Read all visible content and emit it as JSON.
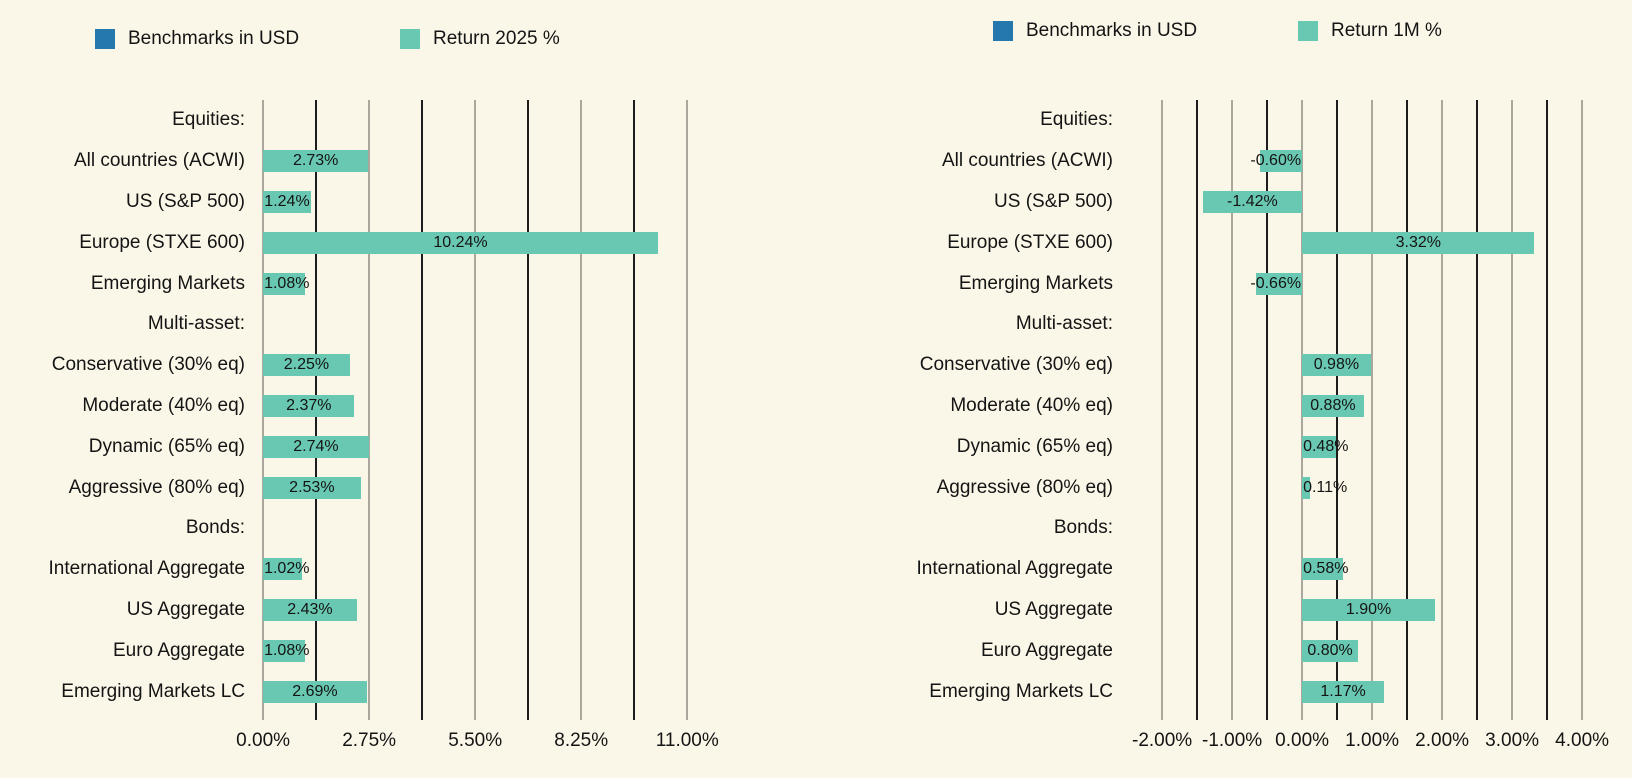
{
  "page": {
    "background": "#FBF7E8",
    "text_color": "#141414",
    "grid_labeled_color": "#ABA79D",
    "grid_midpoint_color": "#1C1C1C"
  },
  "chart_data": [
    {
      "type": "bar",
      "orientation": "horizontal",
      "grid": true,
      "legend_position": "top",
      "bar_color": "#69C8B2",
      "legend_items": [
        {
          "label": "Benchmarks in USD",
          "color": "#2478AD"
        },
        {
          "label": "Return 2025 %",
          "color": "#69C8B2"
        }
      ],
      "categories": [
        "Equities:",
        "All countries (ACWI)",
        "US (S&P 500)",
        "Europe (STXE 600)",
        "Emerging Markets",
        "Multi-asset:",
        "Conservative (30% eq)",
        "Moderate (40% eq)",
        "Dynamic (65% eq)",
        "Aggressive (80% eq)",
        "Bonds:",
        "International Aggregate",
        "US Aggregate",
        "Euro Aggregate",
        "Emerging Markets LC"
      ],
      "values": [
        null,
        2.73,
        1.24,
        10.24,
        1.08,
        null,
        2.25,
        2.37,
        2.74,
        2.53,
        null,
        1.02,
        2.43,
        1.08,
        2.69
      ],
      "value_labels": [
        "",
        "2.73%",
        "1.24%",
        "10.24%",
        "1.08%",
        "",
        "2.25%",
        "2.37%",
        "2.74%",
        "2.53%",
        "",
        "1.02%",
        "2.43%",
        "1.08%",
        "2.69%"
      ],
      "x_ticks": [
        {
          "value": 0,
          "label": "0.00%"
        },
        {
          "value": 2.75,
          "label": "2.75%"
        },
        {
          "value": 5.5,
          "label": "5.50%"
        },
        {
          "value": 8.25,
          "label": "8.25%"
        },
        {
          "value": 11,
          "label": "11.00%"
        }
      ],
      "minor_gridlines": [
        1.375,
        4.125,
        6.875,
        9.625
      ],
      "xlim": [
        -0.21,
        11.72
      ]
    },
    {
      "type": "bar",
      "orientation": "horizontal",
      "grid": true,
      "legend_position": "top",
      "bar_color": "#69C8B2",
      "legend_items": [
        {
          "label": "Benchmarks in USD",
          "color": "#2478AD"
        },
        {
          "label": "Return 1M %",
          "color": "#69C8B2"
        }
      ],
      "categories": [
        "Equities:",
        "All countries (ACWI)",
        "US (S&P 500)",
        "Europe (STXE 600)",
        "Emerging Markets",
        "Multi-asset:",
        "Conservative (30% eq)",
        "Moderate (40% eq)",
        "Dynamic (65% eq)",
        "Aggressive (80% eq)",
        "Bonds:",
        "International Aggregate",
        "US Aggregate",
        "Euro Aggregate",
        "Emerging Markets LC"
      ],
      "values": [
        null,
        -0.6,
        -1.42,
        3.32,
        -0.66,
        null,
        0.98,
        0.88,
        0.48,
        0.11,
        null,
        0.58,
        1.9,
        0.8,
        1.17
      ],
      "value_labels": [
        "",
        "-0.60%",
        "-1.42%",
        "3.32%",
        "-0.66%",
        "",
        "0.98%",
        "0.88%",
        "0.48%",
        "0.11%",
        "",
        "0.58%",
        "1.90%",
        "0.80%",
        "1.17%"
      ],
      "x_ticks": [
        {
          "value": -2,
          "label": "-2.00%"
        },
        {
          "value": -1,
          "label": "-1.00%"
        },
        {
          "value": 0,
          "label": "0.00%"
        },
        {
          "value": 1,
          "label": "1.00%"
        },
        {
          "value": 2,
          "label": "2.00%"
        },
        {
          "value": 3,
          "label": "3.00%"
        },
        {
          "value": 4,
          "label": "4.00%"
        }
      ],
      "minor_gridlines": [
        -1.5,
        -0.5,
        0.5,
        1.5,
        2.5,
        3.5
      ],
      "xlim": [
        -2.53,
        4.47
      ]
    }
  ]
}
